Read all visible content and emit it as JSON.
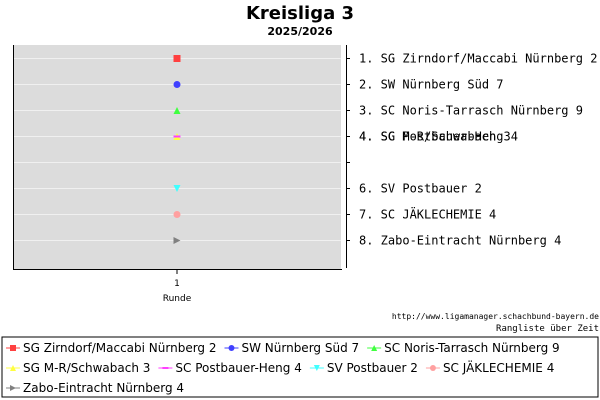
{
  "chart_data": {
    "type": "scatter",
    "title": "Kreisliga 3",
    "subtitle": "2025/2026",
    "xlabel": "Runde",
    "x_ticks": [
      "1"
    ],
    "y_direction": "rank (1 at top)",
    "ylim": [
      1,
      8
    ],
    "grid": true,
    "legend_position": "bottom",
    "series": [
      {
        "name": "SG Zirndorf/Maccabi Nürnberg 2",
        "rank_label": "1.",
        "x": [
          1
        ],
        "y": [
          1
        ],
        "color": "#ff4040",
        "marker": "square"
      },
      {
        "name": "SW Nürnberg Süd 7",
        "rank_label": "2.",
        "x": [
          1
        ],
        "y": [
          2
        ],
        "color": "#4040ff",
        "marker": "circle"
      },
      {
        "name": "SC Noris-Tarrasch Nürnberg 9",
        "rank_label": "3.",
        "x": [
          1
        ],
        "y": [
          3
        ],
        "color": "#40ff40",
        "marker": "triangle-up"
      },
      {
        "name": "SG M-R/Schwabach 3",
        "rank_label": "4.",
        "x": [
          1
        ],
        "y": [
          4
        ],
        "color": "#ffff40",
        "marker": "triangle-up"
      },
      {
        "name": "SC Postbauer-Heng 4",
        "rank_label": "4.",
        "x": [
          1
        ],
        "y": [
          4
        ],
        "color": "#ff40ff",
        "marker": "dash"
      },
      {
        "name": "SV Postbauer 2",
        "rank_label": "6.",
        "x": [
          1
        ],
        "y": [
          6
        ],
        "color": "#40ffff",
        "marker": "triangle-down"
      },
      {
        "name": "SC JÄKLECHEMIE 4",
        "rank_label": "7.",
        "x": [
          1
        ],
        "y": [
          7
        ],
        "color": "#ffa0a0",
        "marker": "circle"
      },
      {
        "name": "Zabo-Eintracht Nürnberg 4",
        "rank_label": "8.",
        "x": [
          1
        ],
        "y": [
          8
        ],
        "color": "#808080",
        "marker": "triangle-right"
      }
    ]
  },
  "footer": {
    "url": "http://www.ligamanager.schachbund-bayern.de",
    "note": "Rangliste über Zeit"
  },
  "colors": {
    "plot_background": "#dcdcdc",
    "grid": "#f0f0f0"
  }
}
